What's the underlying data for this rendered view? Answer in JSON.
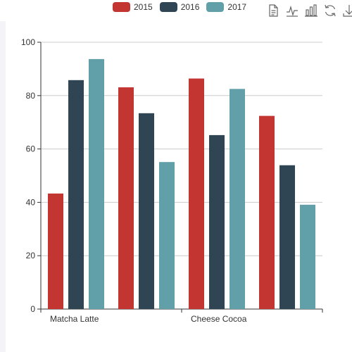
{
  "colors": {
    "series": [
      "#c23531",
      "#2f4554",
      "#61a0a8"
    ],
    "grid": "#cccccc",
    "axis": "#333333",
    "tool": "#666666"
  },
  "legend": {
    "items": [
      "2015",
      "2016",
      "2017"
    ]
  },
  "toolbox": {
    "icons": [
      "data-view-icon",
      "line-chart-icon",
      "bar-chart-icon",
      "restore-icon",
      "download-icon"
    ]
  },
  "chart_data": {
    "type": "bar",
    "categories": [
      "Matcha Latte",
      "",
      "Cheese Cocoa",
      ""
    ],
    "series": [
      {
        "name": "2015",
        "values": [
          43.3,
          83.1,
          86.4,
          72.4
        ]
      },
      {
        "name": "2016",
        "values": [
          85.8,
          73.4,
          65.2,
          53.9
        ]
      },
      {
        "name": "2017",
        "values": [
          93.7,
          55.1,
          82.5,
          39.1
        ]
      }
    ],
    "ylim": [
      0,
      100
    ],
    "yticks": [
      0,
      20,
      40,
      60,
      80,
      100
    ],
    "grid": true,
    "legend_position": "top"
  }
}
